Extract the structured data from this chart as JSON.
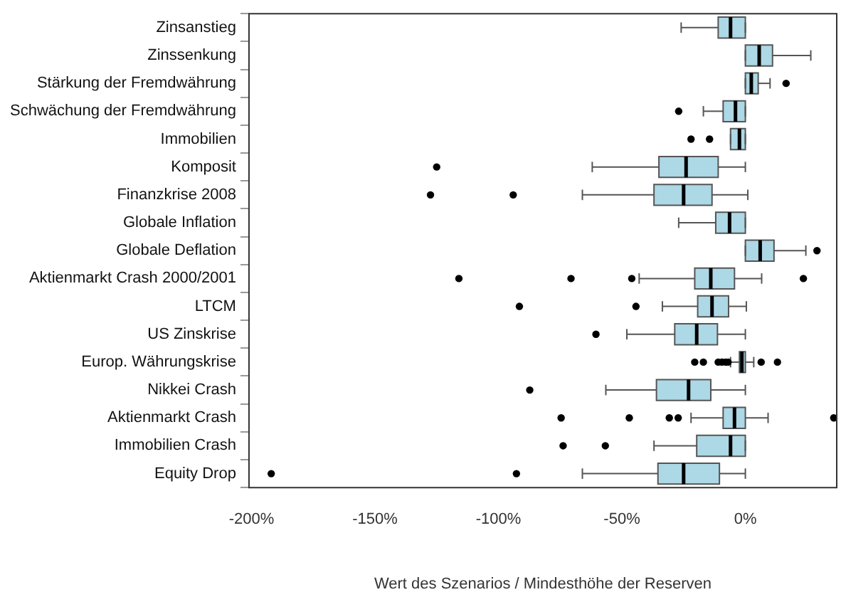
{
  "chart_data": {
    "type": "box",
    "orientation": "horizontal",
    "xlabel": "Wert des Szenarios / Mindesthöhe der Reserven",
    "categories": [
      "Zinsanstieg",
      "Zinssenkung",
      "Stärkung der Fremdwährung",
      "Schwächung der Fremdwährung",
      "Immobilien",
      "Komposit",
      "Finanzkrise 2008",
      "Globale Inflation",
      "Globale Deflation",
      "Aktienmarkt Crash 2000/2001",
      "LTCM",
      "US Zinskrise",
      "Europ. Währungskrise",
      "Nikkei Crash",
      "Aktienmarkt Crash",
      "Immobilien Crash",
      "Equity Drop"
    ],
    "boxes": [
      {
        "low": -26,
        "q1": -11,
        "median": -6,
        "q3": 0,
        "high": 0
      },
      {
        "low": 0,
        "q1": 0,
        "median": 5.6,
        "q3": 11,
        "high": 26.5
      },
      {
        "low": 0,
        "q1": 0,
        "median": 2.4,
        "q3": 5.2,
        "high": 10,
        "outliers": [
          16.5
        ]
      },
      {
        "low": -17,
        "q1": -9,
        "median": -4,
        "q3": 0,
        "high": 0,
        "outliers": [
          -27
        ]
      },
      {
        "low": -6,
        "q1": -6,
        "median": -2.4,
        "q3": 0,
        "high": 0,
        "outliers": [
          -22,
          -14.5
        ]
      },
      {
        "low": -62,
        "q1": -35,
        "median": -24,
        "q3": -11,
        "high": 0,
        "outliers": [
          -125
        ]
      },
      {
        "low": -66,
        "q1": -37,
        "median": -25,
        "q3": -13.5,
        "high": 1,
        "outliers": [
          -127.5,
          -94
        ]
      },
      {
        "low": -27,
        "q1": -12,
        "median": -6.4,
        "q3": 0,
        "high": 0
      },
      {
        "low": 0,
        "q1": 0,
        "median": 6,
        "q3": 11.6,
        "high": 24.5,
        "outliers": [
          29
        ]
      },
      {
        "low": -43,
        "q1": -20.5,
        "median": -14,
        "q3": -4.4,
        "high": 6.6,
        "outliers": [
          -116,
          -70.6,
          -46,
          23.5
        ]
      },
      {
        "low": -33.6,
        "q1": -19.3,
        "median": -13.5,
        "q3": -6.8,
        "high": 0.4,
        "outliers": [
          -91.5,
          -44.3
        ]
      },
      {
        "low": -48,
        "q1": -28.6,
        "median": -19.7,
        "q3": -11.3,
        "high": 0,
        "outliers": [
          -60.5
        ]
      },
      {
        "low": -6,
        "q1": -2.4,
        "median": -1.4,
        "q3": 0,
        "high": 3.4,
        "outliers": [
          -20.5,
          -17,
          -11,
          -9.5,
          -8,
          -7,
          6.4,
          13
        ]
      },
      {
        "low": -56.5,
        "q1": -36,
        "median": -23,
        "q3": -14,
        "high": 0,
        "outliers": [
          -87.3
        ]
      },
      {
        "low": -22,
        "q1": -9,
        "median": -4.4,
        "q3": 0,
        "high": 9.2,
        "outliers": [
          -74.6,
          -47,
          -30.8,
          -27.2,
          35.8
        ]
      },
      {
        "low": -37,
        "q1": -19.7,
        "median": -6,
        "q3": 0,
        "high": 0,
        "outliers": [
          -73.8,
          -56.7
        ]
      },
      {
        "low": -66,
        "q1": -35.4,
        "median": -25,
        "q3": -10.5,
        "high": 0,
        "outliers": [
          -192,
          -92.7
        ]
      }
    ],
    "color": "#add8e6",
    "xlim": [
      -201,
      37
    ],
    "xticks": [
      {
        "value": -200,
        "label": "-200%"
      },
      {
        "value": -150,
        "label": "-150%"
      },
      {
        "value": -100,
        "label": "-100%"
      },
      {
        "value": -50,
        "label": "-50%"
      },
      {
        "value": 0,
        "label": "0%"
      }
    ],
    "grid": false,
    "legend": false
  }
}
